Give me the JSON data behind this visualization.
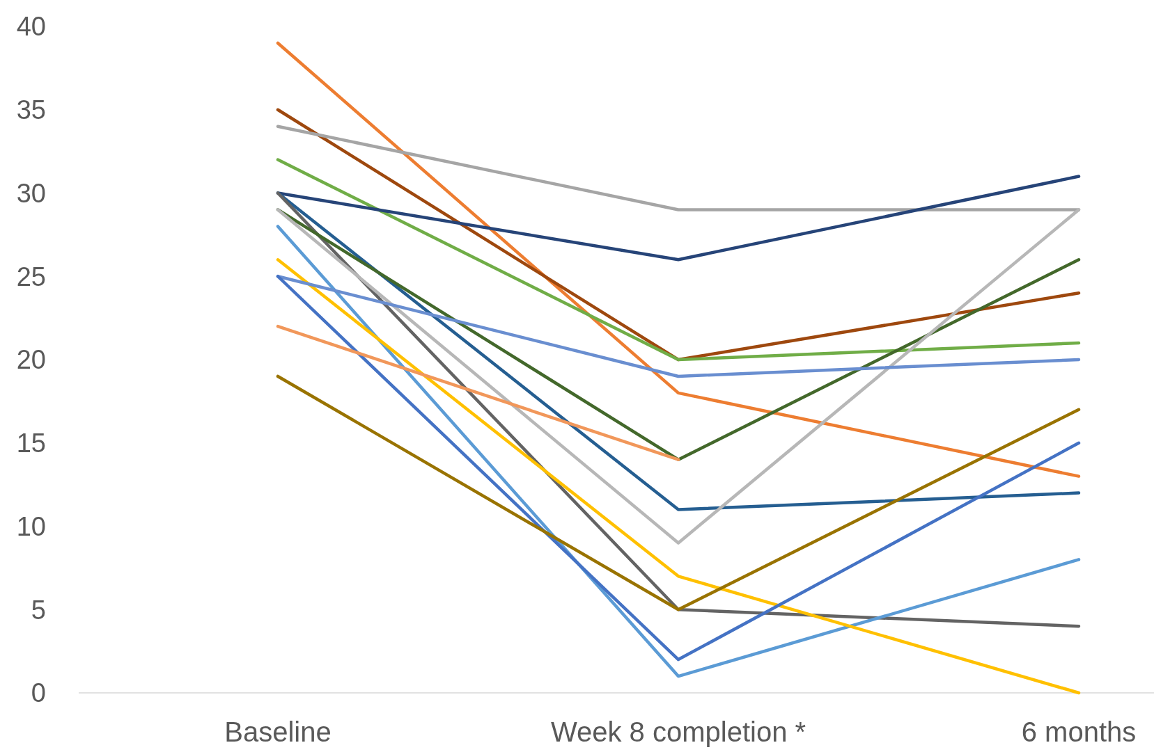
{
  "chart_data": {
    "type": "line",
    "categories": [
      "Baseline",
      "Week 8 completion *",
      "6 months"
    ],
    "ylim": [
      0,
      40
    ],
    "yticks": [
      0,
      5,
      10,
      15,
      20,
      25,
      30,
      35,
      40
    ],
    "grid": false,
    "series": [
      {
        "color": "#ed7d31",
        "values": [
          39,
          18,
          13
        ]
      },
      {
        "color": "#9e480e",
        "values": [
          35,
          20,
          24
        ]
      },
      {
        "color": "#a5a5a5",
        "values": [
          34,
          29,
          29
        ]
      },
      {
        "color": "#70ad47",
        "values": [
          32,
          20,
          21
        ]
      },
      {
        "color": "#264478",
        "values": [
          30,
          26,
          31
        ]
      },
      {
        "color": "#255e91",
        "values": [
          30,
          11,
          12
        ]
      },
      {
        "color": "#636363",
        "values": [
          30,
          5,
          4
        ]
      },
      {
        "color": "#43682b",
        "values": [
          29,
          14,
          26
        ]
      },
      {
        "color": "#b7b7b7",
        "values": [
          29,
          9,
          29
        ]
      },
      {
        "color": "#5b9bd5",
        "values": [
          28,
          1,
          8
        ]
      },
      {
        "color": "#ffc000",
        "values": [
          26,
          7,
          0
        ]
      },
      {
        "color": "#698ed0",
        "values": [
          25,
          19,
          20
        ]
      },
      {
        "color": "#4472c4",
        "values": [
          25,
          2,
          15
        ]
      },
      {
        "color": "#f1975a",
        "values": [
          22,
          14,
          null
        ]
      },
      {
        "color": "#997300",
        "values": [
          19,
          5,
          17
        ]
      }
    ]
  }
}
